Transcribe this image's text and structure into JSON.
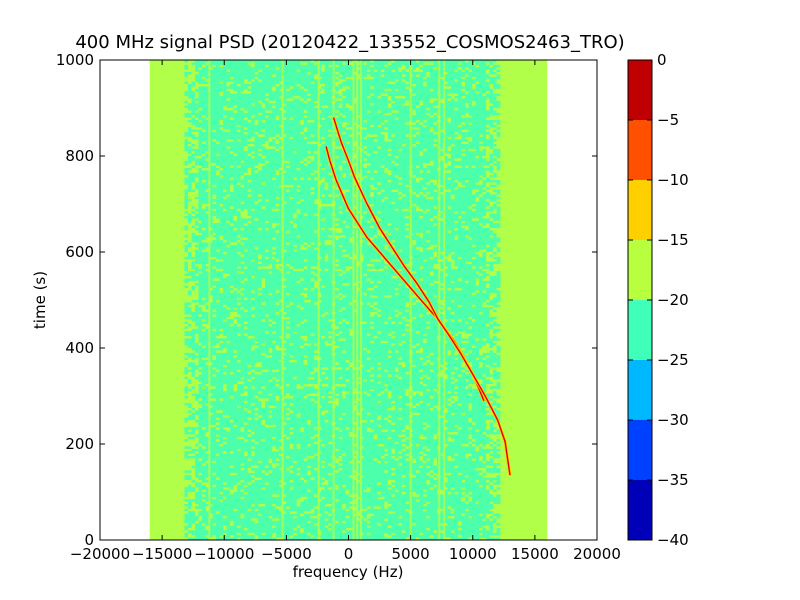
{
  "chart_data": {
    "type": "heatmap",
    "title": "400 MHz signal PSD (20120422_133552_COSMOS2463_TRO)",
    "xlabel": "frequency (Hz)",
    "ylabel": "time (s)",
    "xlim": [
      -20000,
      20000
    ],
    "ylim": [
      0,
      1000
    ],
    "xticks": [
      -20000,
      -15000,
      -10000,
      -5000,
      0,
      5000,
      10000,
      15000,
      20000
    ],
    "xtick_labels": [
      "−20000",
      "−15000",
      "−10000",
      "−5000",
      "0",
      "5000",
      "10000",
      "15000",
      "20000"
    ],
    "yticks": [
      0,
      200,
      400,
      600,
      800,
      1000
    ],
    "ytick_labels": [
      "0",
      "200",
      "400",
      "600",
      "800",
      "1000"
    ],
    "data_extent_x": [
      -16000,
      16000
    ],
    "colorbar": {
      "range": [
        -40,
        0
      ],
      "levels": [
        -40,
        -35,
        -30,
        -25,
        -20,
        -15,
        -10,
        -5,
        0
      ],
      "tick_labels": [
        "−40",
        "−35",
        "−30",
        "−25",
        "−20",
        "−15",
        "−10",
        "−5",
        "0"
      ],
      "colors": [
        "#0000b8",
        "#0040ff",
        "#00b8ff",
        "#40ffb8",
        "#b8ff40",
        "#ffd000",
        "#ff5000",
        "#c00000"
      ]
    },
    "background_band_color": "#b2ff4a",
    "noise_color": "#4cffaa",
    "vertical_lines_hz": [
      -11200,
      -5300,
      -2400,
      -1200,
      400,
      700,
      1000,
      5000,
      7300,
      7700
    ],
    "series": [
      {
        "x": [
          -1800,
          -1500,
          -1000,
          -500,
          0,
          500,
          1500,
          2500,
          3500,
          4500,
          5500,
          6500,
          7200,
          7800,
          8500,
          9300,
          10000,
          10500,
          10900
        ],
        "y": [
          820,
          790,
          750,
          720,
          690,
          670,
          630,
          600,
          570,
          540,
          510,
          480,
          460,
          440,
          415,
          380,
          345,
          315,
          290
        ]
      },
      {
        "x": [
          -1200,
          -600,
          0,
          500,
          1500,
          2500,
          3500,
          4500,
          5500,
          6500,
          7200,
          8000,
          9000,
          10000,
          11000,
          12000,
          12600,
          13000
        ],
        "y": [
          880,
          830,
          790,
          755,
          700,
          650,
          610,
          570,
          535,
          495,
          460,
          430,
          390,
          345,
          300,
          250,
          205,
          135
        ]
      }
    ]
  }
}
